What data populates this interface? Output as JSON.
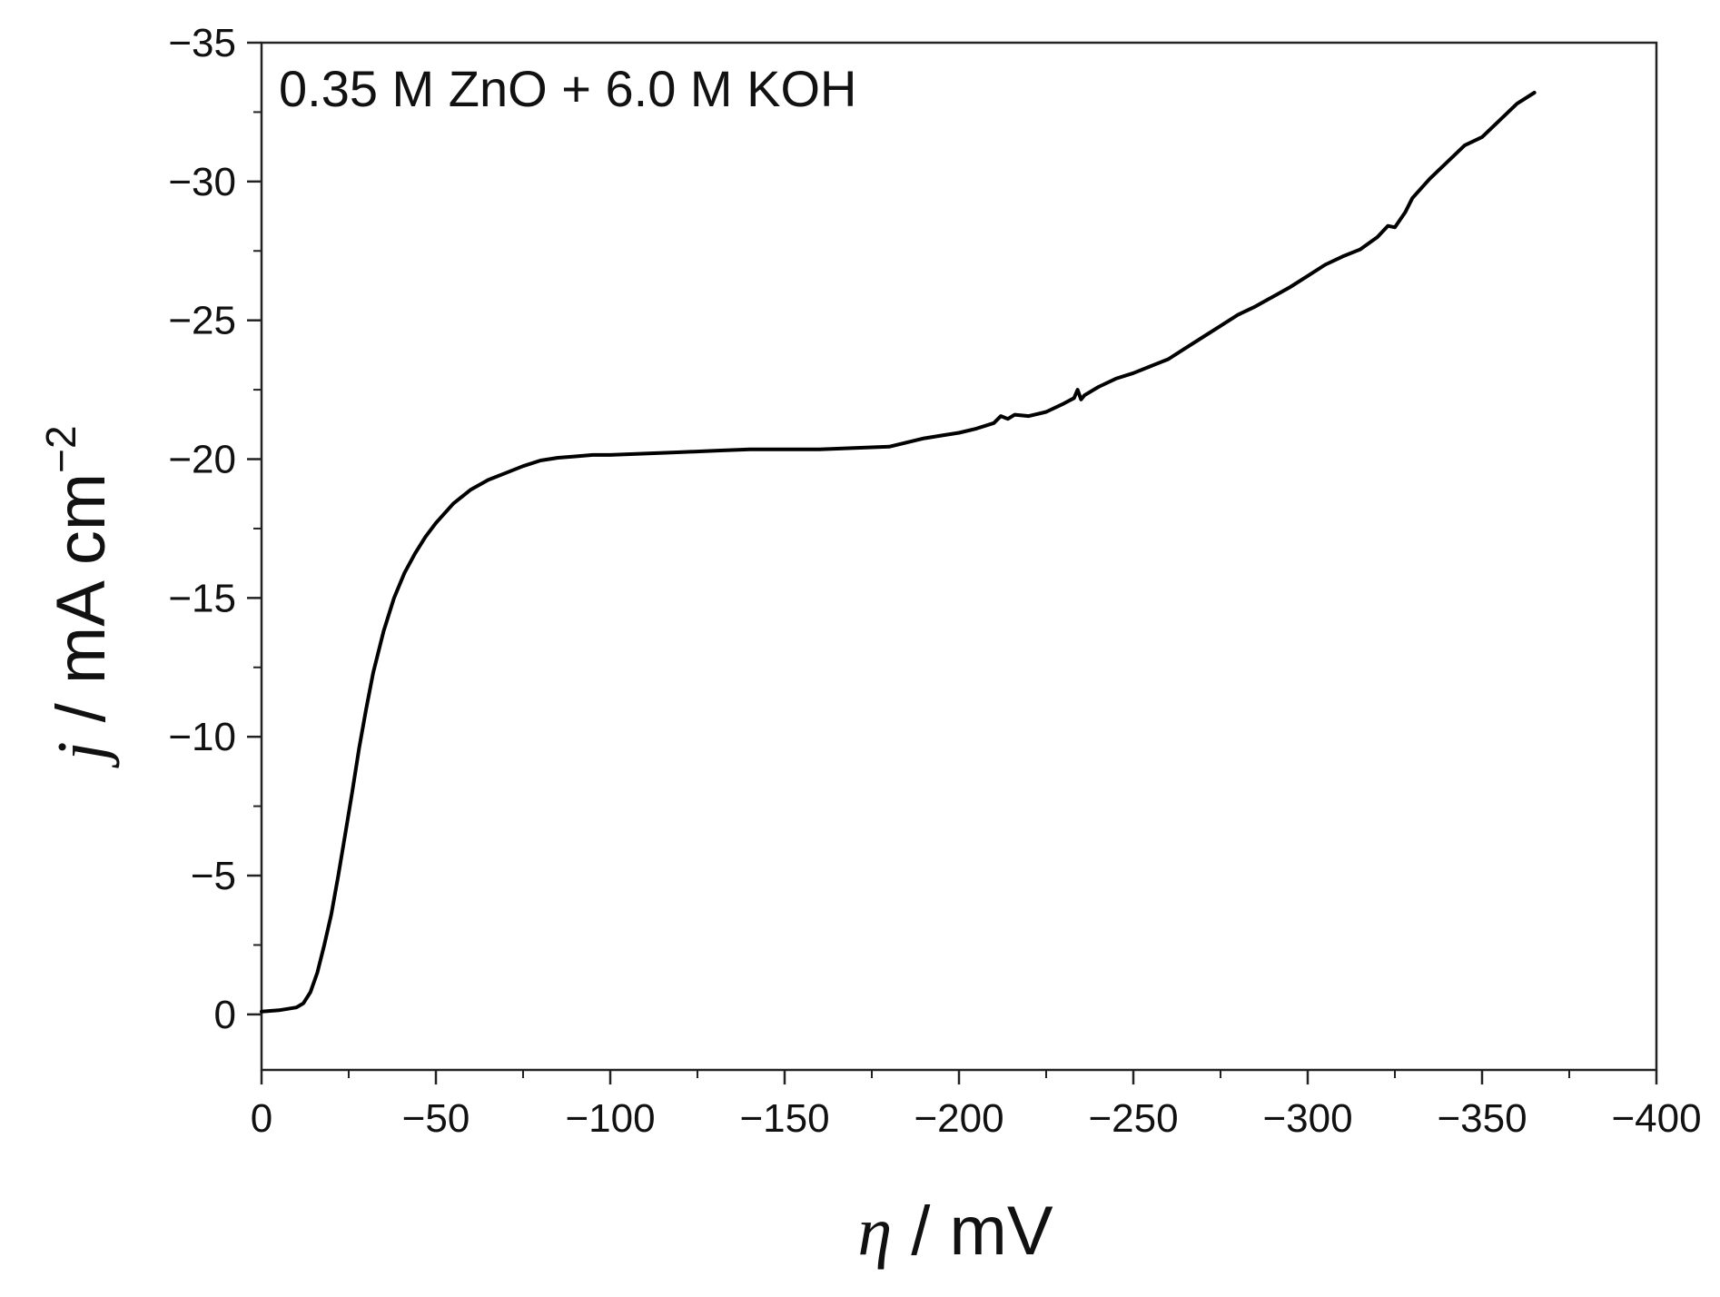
{
  "chart_data": {
    "type": "line",
    "annotation": "0.35 M ZnO + 6.0 M KOH",
    "xlabel": {
      "symbol": "η",
      "unit": " / mV"
    },
    "ylabel": {
      "symbol": "j",
      "unit": " / mA cm",
      "superscript": "−2"
    },
    "xlim": [
      0,
      -400
    ],
    "ylim": [
      2,
      -35
    ],
    "x_ticks": [
      0,
      -50,
      -100,
      -150,
      -200,
      -250,
      -300,
      -350,
      -400
    ],
    "x_tick_labels": [
      "0",
      "−50",
      "−100",
      "−150",
      "−200",
      "−250",
      "−300",
      "−350",
      "−400"
    ],
    "y_ticks": [
      0,
      -5,
      -10,
      -15,
      -20,
      -25,
      -30,
      -35
    ],
    "y_tick_labels": [
      "0",
      "−5",
      "−10",
      "−15",
      "−20",
      "−25",
      "−30",
      "−35"
    ],
    "grid": false,
    "series": [
      {
        "color": "#000000",
        "x": [
          0,
          -5,
          -10,
          -12,
          -14,
          -16,
          -18,
          -20,
          -22,
          -24,
          -26,
          -28,
          -30,
          -32,
          -35,
          -38,
          -41,
          -44,
          -47,
          -50,
          -55,
          -60,
          -65,
          -70,
          -75,
          -80,
          -85,
          -90,
          -95,
          -100,
          -110,
          -120,
          -130,
          -140,
          -150,
          -160,
          -170,
          -180,
          -185,
          -190,
          -195,
          -200,
          -205,
          -210,
          -212,
          -214,
          -216,
          -220,
          -225,
          -230,
          -233,
          -234,
          -235,
          -236,
          -240,
          -245,
          -250,
          -255,
          -260,
          -265,
          -270,
          -275,
          -280,
          -285,
          -290,
          -295,
          -300,
          -305,
          -310,
          -315,
          -320,
          -323,
          -325,
          -328,
          -330,
          -335,
          -340,
          -345,
          -350,
          -355,
          -360,
          -365
        ],
        "y": [
          -0.1,
          -0.15,
          -0.25,
          -0.4,
          -0.8,
          -1.5,
          -2.5,
          -3.6,
          -5.0,
          -6.5,
          -8.0,
          -9.6,
          -11.0,
          -12.3,
          -13.8,
          -15.0,
          -15.9,
          -16.6,
          -17.2,
          -17.7,
          -18.4,
          -18.9,
          -19.25,
          -19.5,
          -19.75,
          -19.95,
          -20.05,
          -20.1,
          -20.15,
          -20.15,
          -20.2,
          -20.25,
          -20.3,
          -20.35,
          -20.35,
          -20.35,
          -20.4,
          -20.45,
          -20.6,
          -20.75,
          -20.85,
          -20.95,
          -21.1,
          -21.3,
          -21.55,
          -21.45,
          -21.6,
          -21.55,
          -21.7,
          -22.0,
          -22.2,
          -22.5,
          -22.15,
          -22.3,
          -22.6,
          -22.9,
          -23.1,
          -23.35,
          -23.6,
          -24.0,
          -24.4,
          -24.8,
          -25.2,
          -25.5,
          -25.85,
          -26.2,
          -26.6,
          -27.0,
          -27.3,
          -27.55,
          -28.0,
          -28.4,
          -28.35,
          -28.9,
          -29.4,
          -30.1,
          -30.7,
          -31.3,
          -31.6,
          -32.2,
          -32.8,
          -33.2
        ]
      }
    ]
  }
}
